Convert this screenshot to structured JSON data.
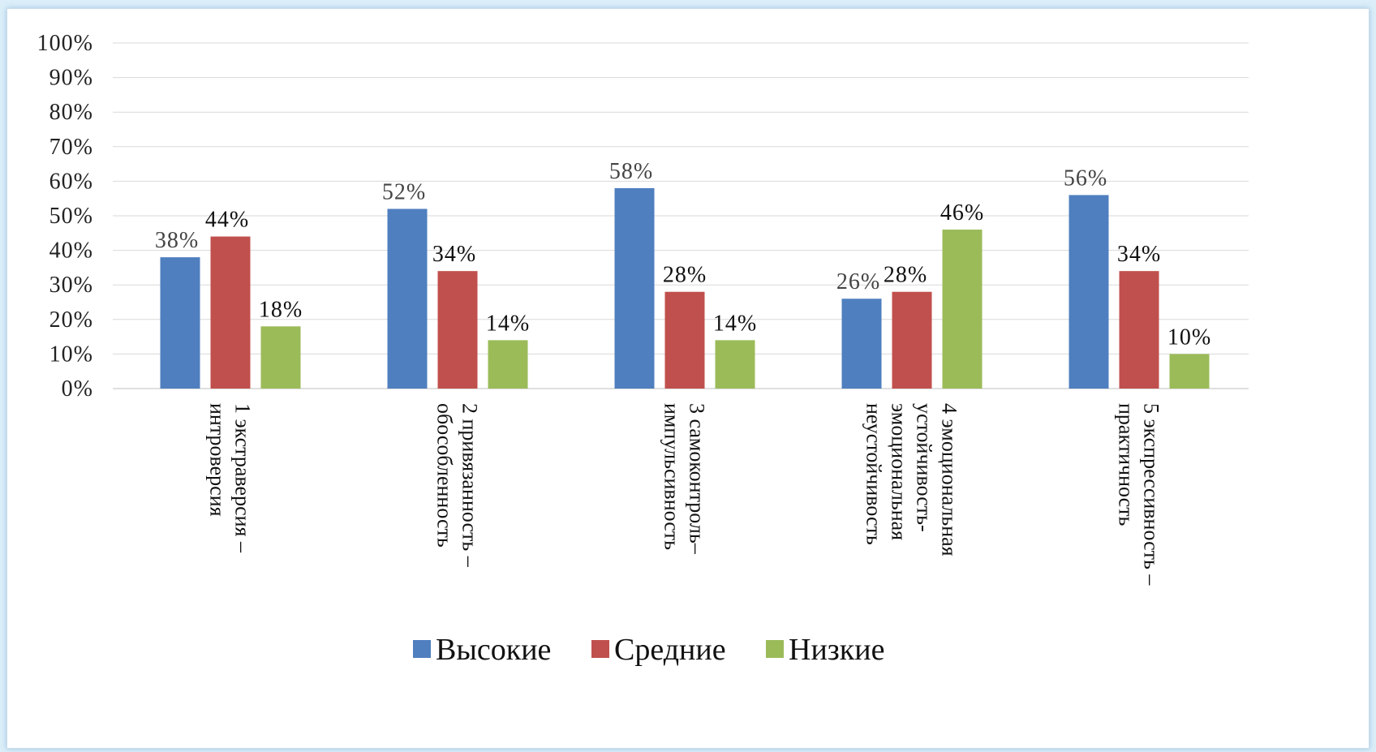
{
  "chart_data": {
    "type": "bar",
    "categories": [
      [
        "1 экстраверсия –",
        "интроверсия"
      ],
      [
        "2 привязанность –",
        "обособленность"
      ],
      [
        "3 самоконтроль–",
        "импульсивность"
      ],
      [
        "4 эмоциональная",
        "устойчивость-",
        "эмоциональная",
        "неустойчивость"
      ],
      [
        "5 экспрессивность –",
        "практичность"
      ]
    ],
    "series": [
      {
        "name": "Высокие",
        "color": "#4f7fbf",
        "values": [
          38,
          52,
          58,
          26,
          56
        ],
        "labels": [
          "38%",
          "52%",
          "58%",
          "26%",
          "56%"
        ]
      },
      {
        "name": "Средние",
        "color": "#c0504d",
        "values": [
          44,
          34,
          28,
          28,
          34
        ],
        "labels": [
          "44%",
          "34%",
          "28%",
          "28%",
          "34%"
        ]
      },
      {
        "name": "Низкие",
        "color": "#9bbb59",
        "values": [
          18,
          14,
          14,
          46,
          10
        ],
        "labels": [
          "18%",
          "14%",
          "14%",
          "46%",
          "10%"
        ]
      }
    ],
    "ylim": [
      0,
      100
    ],
    "yticks": [
      "0%",
      "10%",
      "20%",
      "30%",
      "40%",
      "50%",
      "60%",
      "70%",
      "80%",
      "90%",
      "100%"
    ],
    "grid": true,
    "legend": "bottom"
  }
}
